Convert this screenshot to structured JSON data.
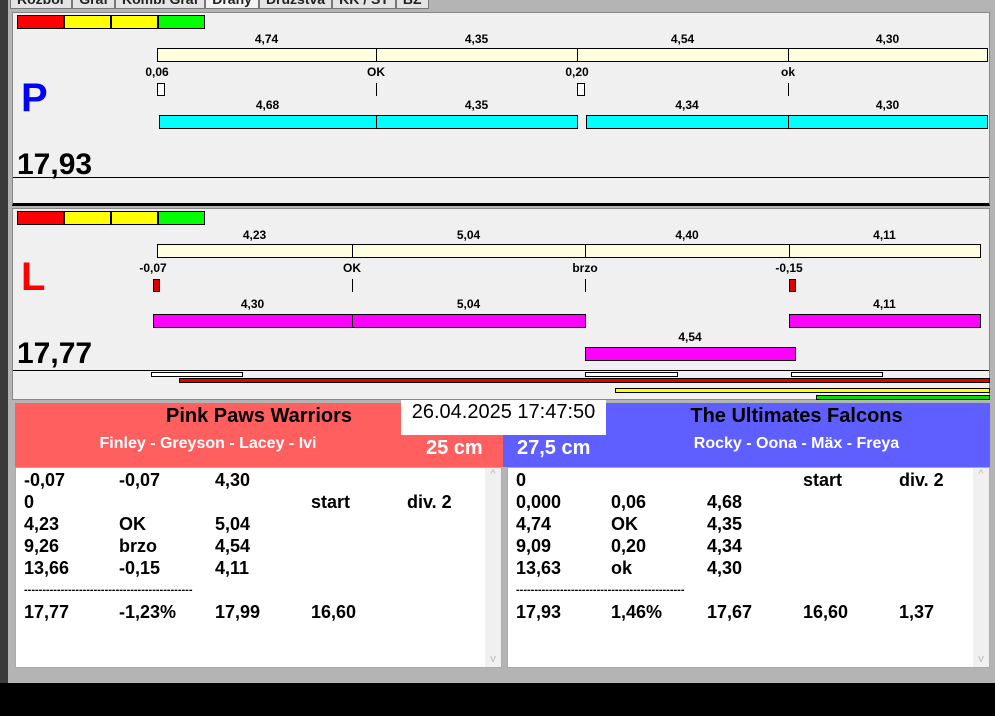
{
  "tabs": [
    "Rozbor",
    "Graf",
    "Kombi Graf",
    "Dráhy",
    "Družstva",
    "KK / ST",
    "BZ"
  ],
  "indicator_colors": [
    "#FF0000",
    "#FFFF00",
    "#FFFF00",
    "#00FF00"
  ],
  "lanes": [
    {
      "letter": "P",
      "letter_color": "#0000FF",
      "total": "17,93",
      "bar_color": "#00FFFF",
      "row1": [
        "4,74",
        "4,35",
        "4,54",
        "4,30"
      ],
      "reaction": [
        "0,06",
        "OK",
        "0,20",
        "ok"
      ],
      "row2": [
        "4,68",
        "4,35",
        "4,34",
        "4,30"
      ],
      "row3": []
    },
    {
      "letter": "L",
      "letter_color": "#FF0000",
      "total": "17,77",
      "bar_color": "#FF00FF",
      "row1": [
        "4,23",
        "5,04",
        "4,40",
        "4,11"
      ],
      "reaction": [
        "-0,07",
        "OK",
        "brzo",
        "-0,15"
      ],
      "row2": [
        "4,30",
        "5,04",
        "4,11"
      ],
      "row3": [
        "4,54"
      ]
    }
  ],
  "datetime": "26.04.2025 17:47:50",
  "left_team": {
    "name": "Pink Paws Warriors",
    "dogs": "Finley - Greyson - Lacey - Ivi",
    "height": "25 cm",
    "color": "#FF5F5F",
    "rows": [
      [
        "-0,07",
        "-0,07",
        "4,30",
        "",
        ""
      ],
      [
        "0",
        "",
        "",
        "start",
        "div. 2"
      ],
      [
        "4,23",
        "OK",
        "5,04",
        "",
        ""
      ],
      [
        "9,26",
        "brzo",
        "4,54",
        "",
        ""
      ],
      [
        "13,66",
        "-0,15",
        "4,11",
        "",
        ""
      ],
      [
        "----------------------------------------------",
        "",
        "",
        "",
        ""
      ],
      [
        "17,77",
        "-1,23%",
        "17,99",
        "16,60",
        ""
      ]
    ]
  },
  "right_team": {
    "name": "The Ultimates Falcons",
    "dogs": "Rocky - Oona - Mäx - Freya",
    "height": "27,5 cm",
    "color": "#5F5FFF",
    "rows": [
      [
        "0",
        "",
        "",
        "start",
        "div. 2"
      ],
      [
        "0,000",
        "0,06",
        "4,68",
        "",
        ""
      ],
      [
        "4,74",
        "OK",
        "4,35",
        "",
        ""
      ],
      [
        "9,09",
        "0,20",
        "4,34",
        "",
        ""
      ],
      [
        "13,63",
        "ok",
        "4,30",
        "",
        ""
      ],
      [
        "----------------------------------------------",
        "",
        "",
        "",
        ""
      ],
      [
        "17,93",
        "1,46%",
        "17,67",
        "16,60",
        "1,37"
      ]
    ]
  }
}
